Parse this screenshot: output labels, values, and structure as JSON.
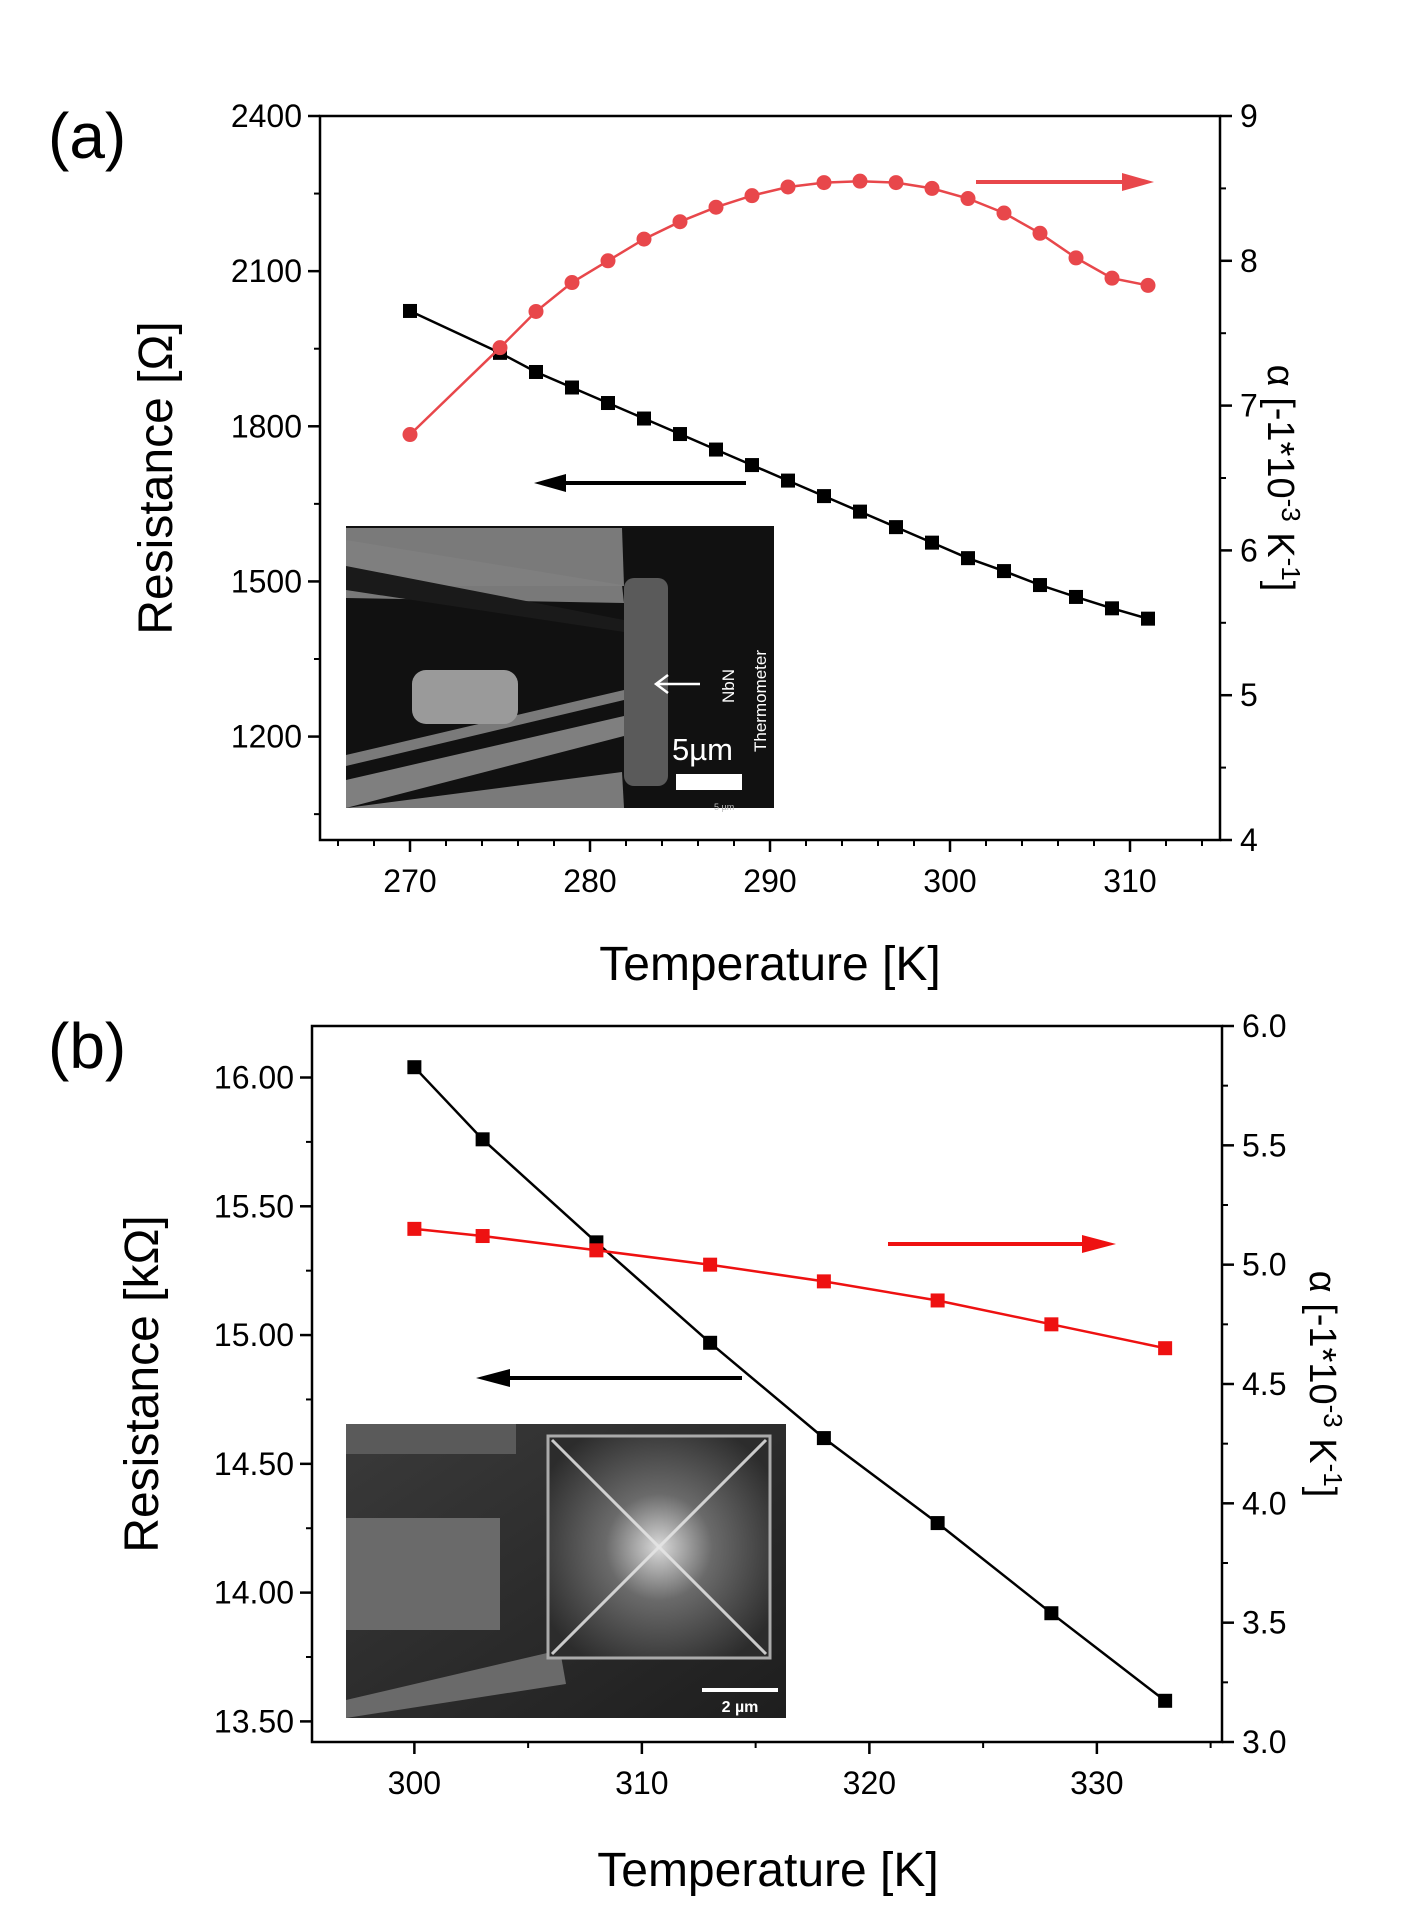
{
  "figure": {
    "inset_a": {
      "scale_label": "5µm",
      "annotation_line1": "NbN",
      "annotation_line2": "Thermometer",
      "footer_label": "5 µm"
    },
    "inset_b": {
      "scale_label": "2 µm"
    }
  },
  "chart_data": [
    {
      "panel": "(a)",
      "type": "line",
      "xlabel": "Temperature [K]",
      "ylabel": "Resistance [Ω]",
      "y2label": "α [-1*10",
      "y2label_exp": "-3",
      "y2label_unit": " K",
      "y2label_unit_exp": "-1",
      "y2label_end": "]",
      "xlim": [
        265,
        315
      ],
      "ylim": [
        1000,
        2400
      ],
      "y2lim": [
        4,
        9
      ],
      "xticks": [
        "270",
        "280",
        "290",
        "300",
        "310"
      ],
      "yticks": [
        "1200",
        "1500",
        "1800",
        "2100",
        "2400"
      ],
      "y2ticks": [
        "4",
        "5",
        "6",
        "7",
        "8",
        "9"
      ],
      "series": [
        {
          "name": "Resistance",
          "axis": "left",
          "color": "#000000",
          "marker": "square",
          "x": [
            270,
            275,
            277,
            279,
            281,
            283,
            285,
            287,
            289,
            291,
            293,
            295,
            297,
            299,
            301,
            303,
            305,
            307,
            309,
            311
          ],
          "values": [
            2023,
            1942,
            1905,
            1875,
            1845,
            1815,
            1785,
            1755,
            1725,
            1695,
            1665,
            1635,
            1605,
            1575,
            1545,
            1520,
            1493,
            1470,
            1448,
            1428
          ]
        },
        {
          "name": "alpha",
          "axis": "right",
          "color": "#e8474b",
          "marker": "circle",
          "x": [
            270,
            275,
            277,
            279,
            281,
            283,
            285,
            287,
            289,
            291,
            293,
            295,
            297,
            299,
            301,
            303,
            305,
            307,
            309,
            311
          ],
          "values": [
            6.8,
            7.4,
            7.65,
            7.85,
            8.0,
            8.15,
            8.27,
            8.37,
            8.45,
            8.51,
            8.54,
            8.55,
            8.54,
            8.5,
            8.43,
            8.33,
            8.19,
            8.02,
            7.88,
            7.83
          ]
        }
      ],
      "annotations": [
        {
          "type": "arrow",
          "direction": "right",
          "color": "#e8474b",
          "refers_to": "alpha"
        },
        {
          "type": "arrow",
          "direction": "left",
          "color": "#000000",
          "refers_to": "Resistance"
        }
      ]
    },
    {
      "panel": "(b)",
      "type": "line",
      "xlabel": "Temperature [K]",
      "ylabel": "Resistance [kΩ]",
      "y2label": "α  [-1*10",
      "y2label_exp": "-3",
      "y2label_unit": " K",
      "y2label_unit_exp": "-1",
      "y2label_end": "]",
      "xlim": [
        295.5,
        335.5
      ],
      "ylim": [
        13.42,
        16.2
      ],
      "y2lim": [
        3.0,
        6.0
      ],
      "xticks": [
        "300",
        "310",
        "320",
        "330"
      ],
      "yticks": [
        "13.50",
        "14.00",
        "14.50",
        "15.00",
        "15.50",
        "16.00"
      ],
      "y2ticks": [
        "3.0",
        "3.5",
        "4.0",
        "4.5",
        "5.0",
        "5.5",
        "6.0"
      ],
      "series": [
        {
          "name": "Resistance",
          "axis": "left",
          "color": "#000000",
          "marker": "square",
          "x": [
            300,
            303,
            308,
            313,
            318,
            323,
            328,
            333
          ],
          "values": [
            16.04,
            15.76,
            15.36,
            14.97,
            14.6,
            14.27,
            13.92,
            13.58
          ]
        },
        {
          "name": "alpha",
          "axis": "right",
          "color": "#ee1111",
          "marker": "square",
          "x": [
            300,
            303,
            308,
            313,
            318,
            323,
            328,
            333
          ],
          "values": [
            5.15,
            5.12,
            5.06,
            5.0,
            4.93,
            4.85,
            4.75,
            4.65
          ]
        }
      ],
      "annotations": [
        {
          "type": "arrow",
          "direction": "right",
          "color": "#ee1111",
          "refers_to": "alpha"
        },
        {
          "type": "arrow",
          "direction": "left",
          "color": "#000000",
          "refers_to": "Resistance"
        }
      ]
    }
  ]
}
